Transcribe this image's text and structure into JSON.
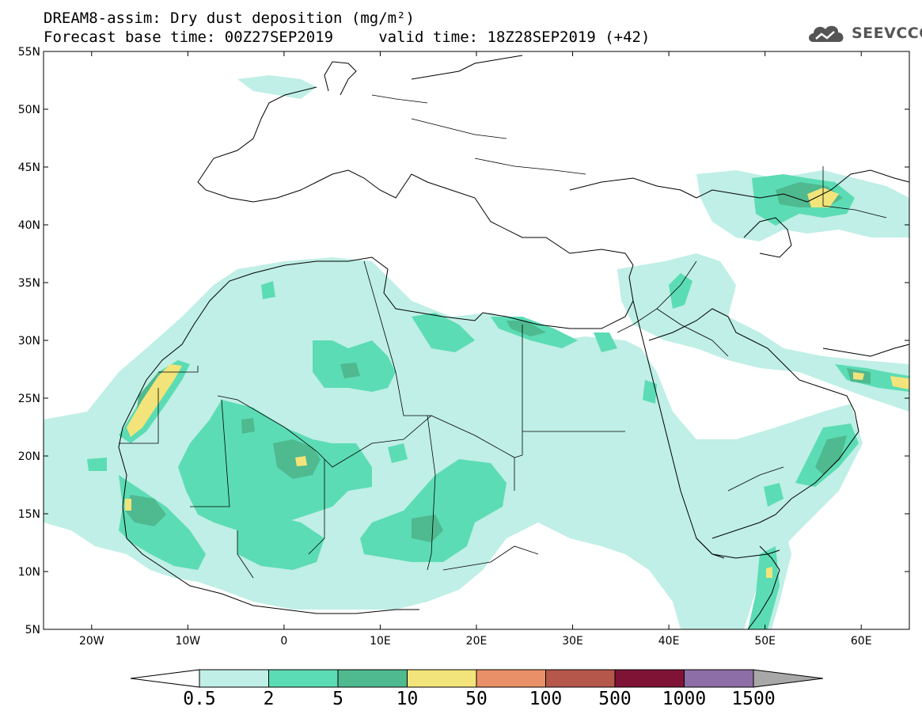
{
  "title": {
    "line1": "DREAM8-assim: Dry dust deposition (mg/m²)",
    "line2": "Forecast base time: 00Z27SEP2019     valid time: 18Z28SEP2019 (+42)"
  },
  "logo": {
    "text": "SEEVCCC",
    "icon": "cloud-icon",
    "color": "#555555"
  },
  "map": {
    "lon_range": [
      -25,
      65
    ],
    "lat_range": [
      5,
      55
    ],
    "x_ticks": [
      "20W",
      "10W",
      "0",
      "10E",
      "20E",
      "30E",
      "40E",
      "50E",
      "60E"
    ],
    "y_ticks": [
      "55N",
      "50N",
      "45N",
      "40N",
      "35N",
      "30N",
      "25N",
      "20N",
      "15N",
      "10N",
      "5N"
    ]
  },
  "legend": {
    "labels": [
      "0.5",
      "2",
      "5",
      "10",
      "50",
      "100",
      "500",
      "1000",
      "1500"
    ],
    "colors": [
      "#bfefe6",
      "#5cdcb4",
      "#4fb98f",
      "#f2e47a",
      "#ea9068",
      "#b5574a",
      "#7e1336",
      "#8e6ea6"
    ],
    "left_arrow_color": "#ffffff",
    "right_arrow_color": "#a8a8a8"
  }
}
